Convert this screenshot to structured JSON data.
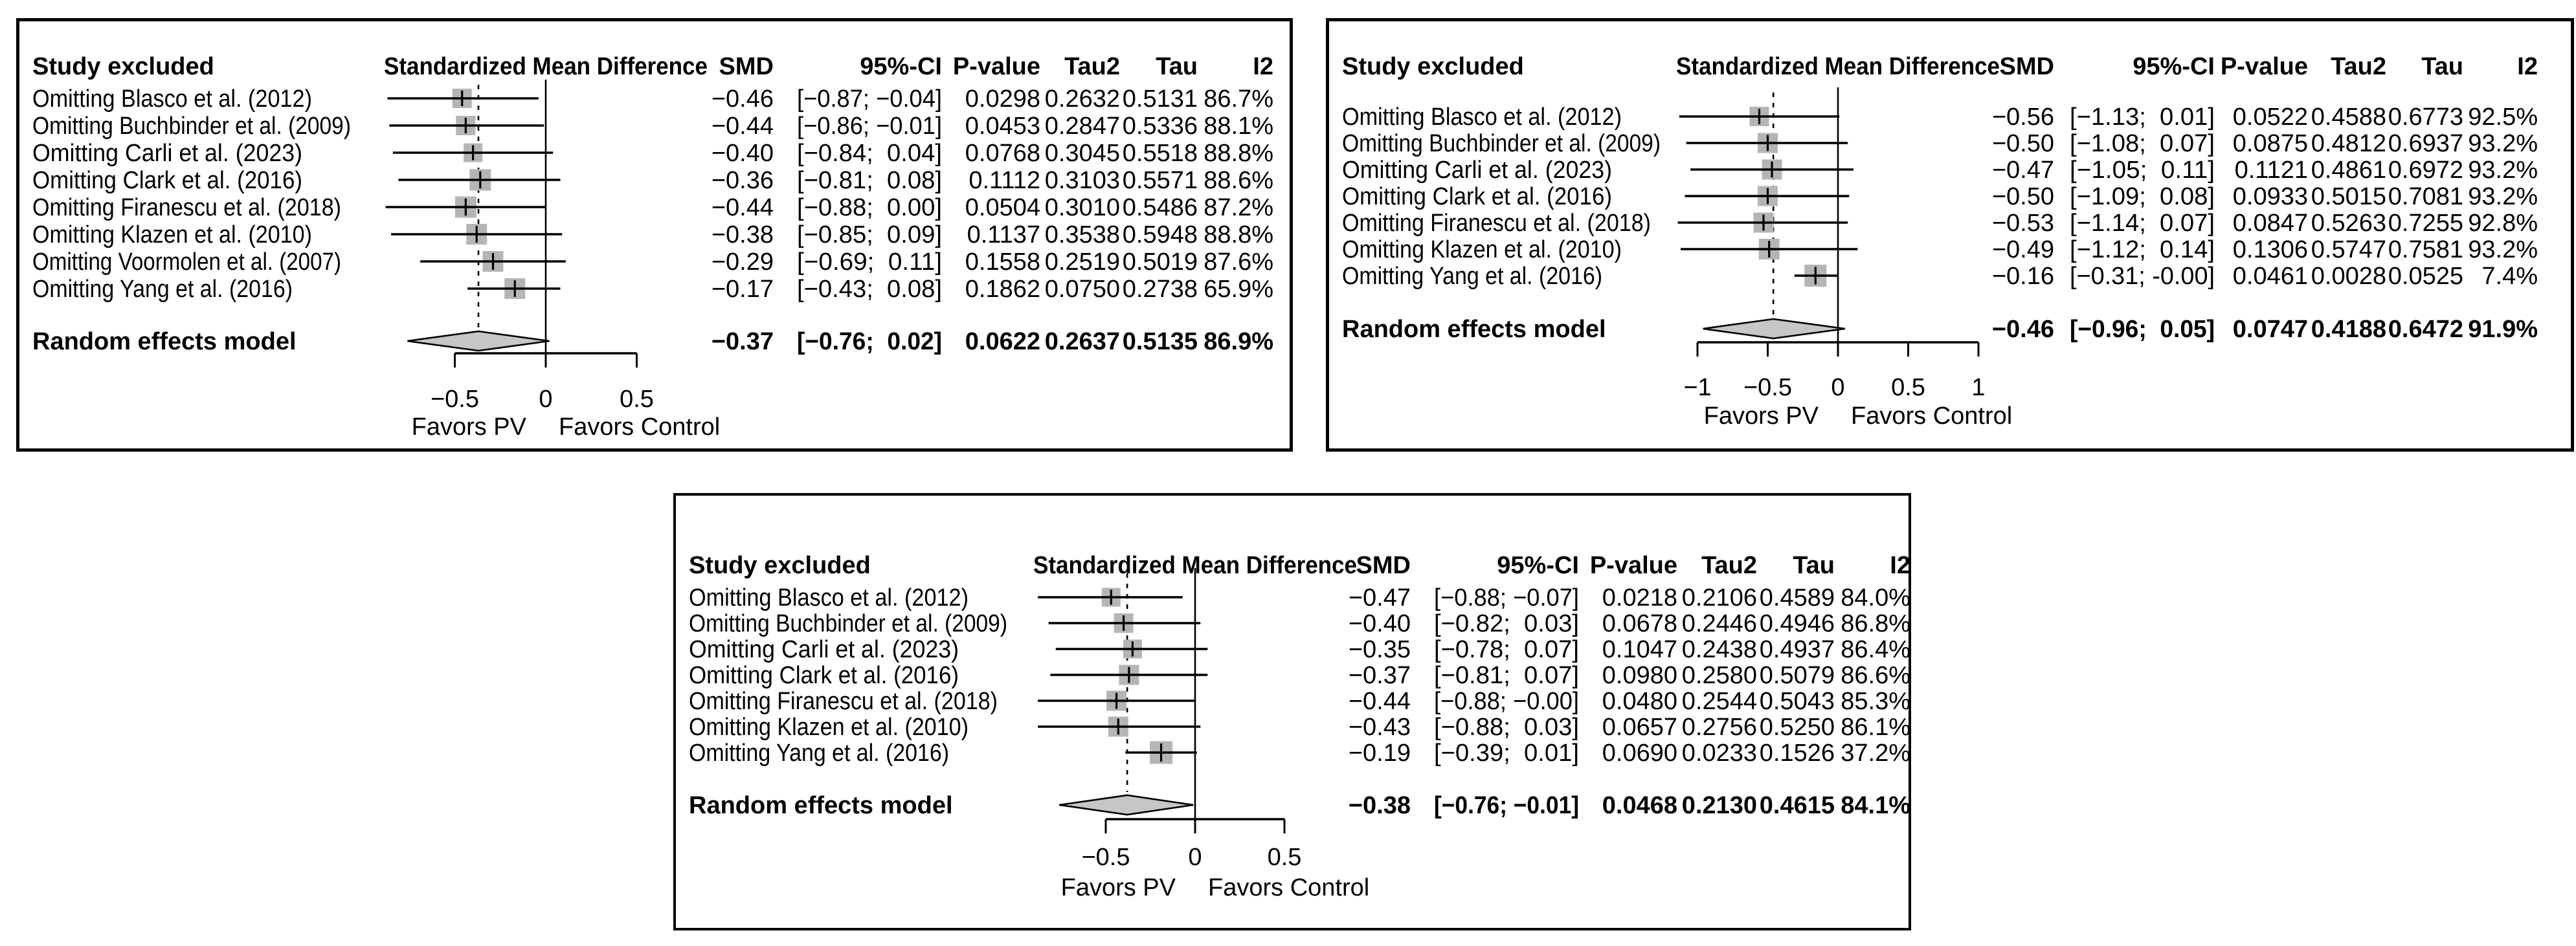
{
  "accent_colors": {
    "marker_fill": "#b5b5b5",
    "diamond_fill": "#c6c6c6",
    "line_color": "#000000",
    "background": "#ffffff"
  },
  "chart_data": [
    {
      "type": "forest",
      "position": "top-left",
      "header": {
        "study": "Study excluded",
        "plot": "Standardized Mean Difference",
        "smd": "SMD",
        "ci": "95%-CI",
        "p": "P-value",
        "tau2": "Tau2",
        "tau": "Tau",
        "i2": "I2"
      },
      "rows": [
        {
          "label": "Omitting Blasco et al. (2012)",
          "est": -0.46,
          "lo": -0.87,
          "hi": -0.04,
          "smd": "−0.46",
          "ci": "[−0.87; −0.04]",
          "p": "0.0298",
          "tau2": "0.2632",
          "tau": "0.5131",
          "i2": "86.7%",
          "size": 30
        },
        {
          "label": "Omitting Buchbinder et al. (2009)",
          "est": -0.44,
          "lo": -0.86,
          "hi": -0.01,
          "smd": "−0.44",
          "ci": "[−0.86; −0.01]",
          "p": "0.0453",
          "tau2": "0.2847",
          "tau": "0.5336",
          "i2": "88.1%",
          "size": 30
        },
        {
          "label": "Omitting Carli et al. (2023)",
          "est": -0.4,
          "lo": -0.84,
          "hi": 0.04,
          "smd": "−0.40",
          "ci": "[−0.84;  0.04]",
          "p": "0.0768",
          "tau2": "0.3045",
          "tau": "0.5518",
          "i2": "88.8%",
          "size": 29
        },
        {
          "label": "Omitting Clark et al. (2016)",
          "est": -0.36,
          "lo": -0.81,
          "hi": 0.08,
          "smd": "−0.36",
          "ci": "[−0.81;  0.08]",
          "p": "0.1112",
          "tau2": "0.3103",
          "tau": "0.5571",
          "i2": "88.6%",
          "size": 33
        },
        {
          "label": "Omitting Firanescu et al. (2018)",
          "est": -0.44,
          "lo": -0.88,
          "hi": 0.0,
          "smd": "−0.44",
          "ci": "[−0.88;  0.00]",
          "p": "0.0504",
          "tau2": "0.3010",
          "tau": "0.5486",
          "i2": "87.2%",
          "size": 33
        },
        {
          "label": "Omitting Klazen et al. (2010)",
          "est": -0.38,
          "lo": -0.85,
          "hi": 0.09,
          "smd": "−0.38",
          "ci": "[−0.85;  0.09]",
          "p": "0.1137",
          "tau2": "0.3538",
          "tau": "0.5948",
          "i2": "88.8%",
          "size": 32
        },
        {
          "label": "Omitting Voormolen et al. (2007)",
          "est": -0.29,
          "lo": -0.69,
          "hi": 0.11,
          "smd": "−0.29",
          "ci": "[−0.69;  0.11]",
          "p": "0.1558",
          "tau2": "0.2519",
          "tau": "0.5019",
          "i2": "87.6%",
          "size": 32
        },
        {
          "label": "Omitting Yang et al. (2016)",
          "est": -0.17,
          "lo": -0.43,
          "hi": 0.08,
          "smd": "−0.17",
          "ci": "[−0.43;  0.08]",
          "p": "0.1862",
          "tau2": "0.0750",
          "tau": "0.2738",
          "i2": "65.9%",
          "size": 32
        }
      ],
      "summary": {
        "label": "Random effects model",
        "est": -0.37,
        "lo": -0.76,
        "hi": 0.02,
        "smd": "−0.37",
        "ci": "[−0.76;  0.02]",
        "p": "0.0622",
        "tau2": "0.2637",
        "tau": "0.5135",
        "i2": "86.9%"
      },
      "axis": {
        "ticks": [
          -0.5,
          0,
          0.5
        ],
        "tick_labels": [
          "−0.5",
          "0",
          "0.5"
        ],
        "favors_left": "Favors PV",
        "favors_right": "Favors Control",
        "dashed_at": -0.37,
        "xmin": -1.0,
        "xmax": 0.55
      }
    },
    {
      "type": "forest",
      "position": "top-right",
      "header": {
        "study": "Study excluded",
        "plot": "Standardized Mean Difference",
        "smd": "SMD",
        "ci": "95%-CI",
        "p": "P-value",
        "tau2": "Tau2",
        "tau": "Tau",
        "i2": "I2"
      },
      "rows": [
        {
          "label": "Omitting Blasco et al. (2012)",
          "est": -0.56,
          "lo": -1.13,
          "hi": 0.01,
          "smd": "−0.56",
          "ci": "[−1.13;  0.01]",
          "p": "0.0522",
          "tau2": "0.4588",
          "tau": "0.6773",
          "i2": "92.5%",
          "size": 30
        },
        {
          "label": "Omitting Buchbinder et al. (2009)",
          "est": -0.5,
          "lo": -1.08,
          "hi": 0.07,
          "smd": "−0.50",
          "ci": "[−1.08;  0.07]",
          "p": "0.0875",
          "tau2": "0.4812",
          "tau": "0.6937",
          "i2": "93.2%",
          "size": 31
        },
        {
          "label": "Omitting Carli et al. (2023)",
          "est": -0.47,
          "lo": -1.05,
          "hi": 0.11,
          "smd": "−0.47",
          "ci": "[−1.05;  0.11]",
          "p": "0.1121",
          "tau2": "0.4861",
          "tau": "0.6972",
          "i2": "93.2%",
          "size": 31
        },
        {
          "label": "Omitting Clark et al. (2016)",
          "est": -0.5,
          "lo": -1.09,
          "hi": 0.08,
          "smd": "−0.50",
          "ci": "[−1.09;  0.08]",
          "p": "0.0933",
          "tau2": "0.5015",
          "tau": "0.7081",
          "i2": "93.2%",
          "size": 31
        },
        {
          "label": "Omitting Firanescu et al. (2018)",
          "est": -0.53,
          "lo": -1.14,
          "hi": 0.07,
          "smd": "−0.53",
          "ci": "[−1.14;  0.07]",
          "p": "0.0847",
          "tau2": "0.5263",
          "tau": "0.7255",
          "i2": "92.8%",
          "size": 31
        },
        {
          "label": "Omitting Klazen et al. (2010)",
          "est": -0.49,
          "lo": -1.12,
          "hi": 0.14,
          "smd": "−0.49",
          "ci": "[−1.12;  0.14]",
          "p": "0.1306",
          "tau2": "0.5747",
          "tau": "0.7581",
          "i2": "93.2%",
          "size": 32
        },
        {
          "label": "Omitting Yang et al. (2016)",
          "est": -0.16,
          "lo": -0.31,
          "hi": 0.0,
          "smd": "−0.16",
          "ci": "[−0.31; -0.00]",
          "p": "0.0461",
          "tau2": "0.0028",
          "tau": "0.0525",
          "i2": "7.4%",
          "size": 34
        }
      ],
      "summary": {
        "label": "Random effects model",
        "est": -0.46,
        "lo": -0.96,
        "hi": 0.05,
        "smd": "−0.46",
        "ci": "[−0.96;  0.05]",
        "p": "0.0747",
        "tau2": "0.4188",
        "tau": "0.6472",
        "i2": "91.9%"
      },
      "axis": {
        "ticks": [
          -1,
          -0.5,
          0,
          0.5,
          1
        ],
        "tick_labels": [
          "−1",
          "−0.5",
          "0",
          "0.5",
          "1"
        ],
        "favors_left": "Favors PV",
        "favors_right": "Favors Control",
        "dashed_at": -0.46,
        "xmin": -1.2,
        "xmax": 1.05
      }
    },
    {
      "type": "forest",
      "position": "bottom-center",
      "header": {
        "study": "Study excluded",
        "plot": "Standardized Mean Difference",
        "smd": "SMD",
        "ci": "95%-CI",
        "p": "P-value",
        "tau2": "Tau2",
        "tau": "Tau",
        "i2": "I2"
      },
      "rows": [
        {
          "label": "Omitting Blasco et al. (2012)",
          "est": -0.47,
          "lo": -0.88,
          "hi": -0.07,
          "smd": "−0.47",
          "ci": "[−0.88; −0.07]",
          "p": "0.0218",
          "tau2": "0.2106",
          "tau": "0.4589",
          "i2": "84.0%",
          "size": 29
        },
        {
          "label": "Omitting Buchbinder et al. (2009)",
          "est": -0.4,
          "lo": -0.82,
          "hi": 0.03,
          "smd": "−0.40",
          "ci": "[−0.82;  0.03]",
          "p": "0.0678",
          "tau2": "0.2446",
          "tau": "0.4946",
          "i2": "86.8%",
          "size": 30
        },
        {
          "label": "Omitting Carli et al. (2023)",
          "est": -0.35,
          "lo": -0.78,
          "hi": 0.07,
          "smd": "−0.35",
          "ci": "[−0.78;  0.07]",
          "p": "0.1047",
          "tau2": "0.2438",
          "tau": "0.4937",
          "i2": "86.4%",
          "size": 29
        },
        {
          "label": "Omitting Clark et al. (2016)",
          "est": -0.37,
          "lo": -0.81,
          "hi": 0.07,
          "smd": "−0.37",
          "ci": "[−0.81;  0.07]",
          "p": "0.0980",
          "tau2": "0.2580",
          "tau": "0.5079",
          "i2": "86.6%",
          "size": 31
        },
        {
          "label": "Omitting Firanescu et al. (2018)",
          "est": -0.44,
          "lo": -0.88,
          "hi": 0.0,
          "smd": "−0.44",
          "ci": "[−0.88; −0.00]",
          "p": "0.0480",
          "tau2": "0.2544",
          "tau": "0.5043",
          "i2": "85.3%",
          "size": 31
        },
        {
          "label": "Omitting Klazen et al. (2010)",
          "est": -0.43,
          "lo": -0.88,
          "hi": 0.03,
          "smd": "−0.43",
          "ci": "[−0.88;  0.03]",
          "p": "0.0657",
          "tau2": "0.2756",
          "tau": "0.5250",
          "i2": "86.1%",
          "size": 31
        },
        {
          "label": "Omitting Yang et al. (2016)",
          "est": -0.19,
          "lo": -0.39,
          "hi": 0.01,
          "smd": "−0.19",
          "ci": "[−0.39;  0.01]",
          "p": "0.0690",
          "tau2": "0.0233",
          "tau": "0.1526",
          "i2": "37.2%",
          "size": 35
        }
      ],
      "summary": {
        "label": "Random effects model",
        "est": -0.38,
        "lo": -0.76,
        "hi": -0.01,
        "smd": "−0.38",
        "ci": "[−0.76; −0.01]",
        "p": "0.0468",
        "tau2": "0.2130",
        "tau": "0.4615",
        "i2": "84.1%"
      },
      "axis": {
        "ticks": [
          -0.5,
          0,
          0.5
        ],
        "tick_labels": [
          "−0.5",
          "0",
          "0.5"
        ],
        "favors_left": "Favors PV",
        "favors_right": "Favors Control",
        "dashed_at": -0.38,
        "xmin": -1.0,
        "xmax": 0.55
      }
    }
  ]
}
